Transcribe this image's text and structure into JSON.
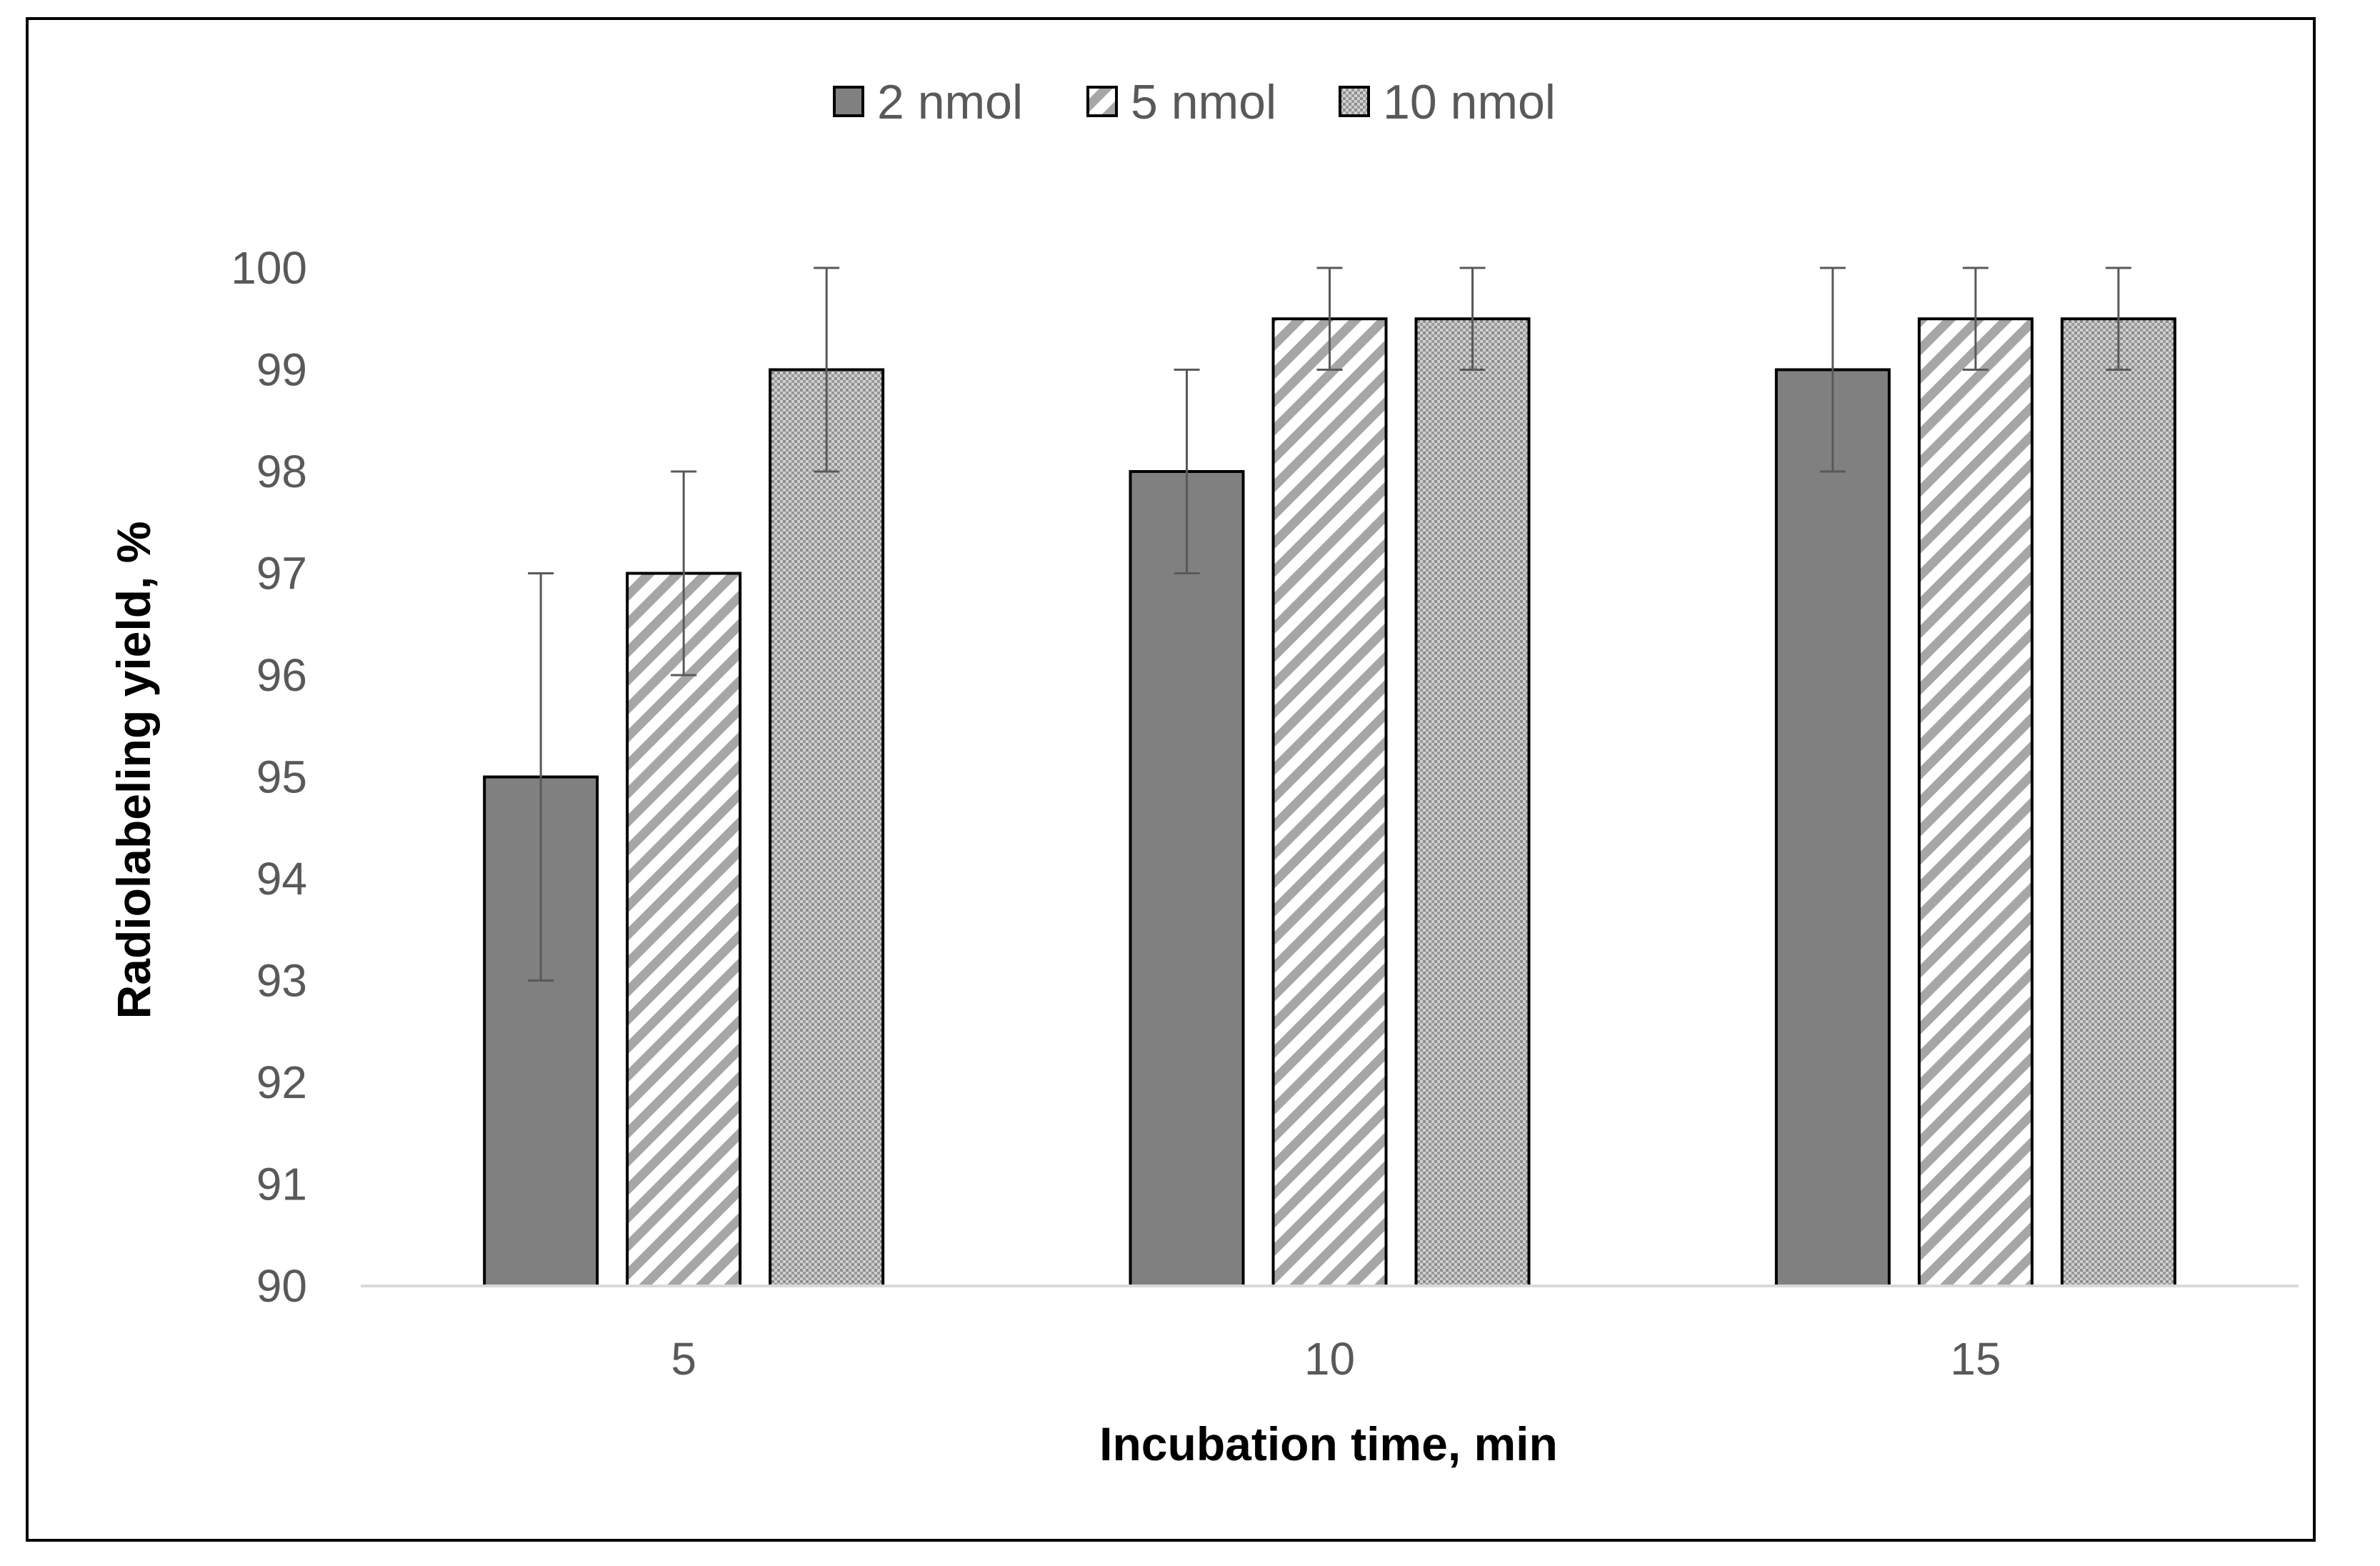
{
  "chart_data": {
    "type": "bar",
    "title": "",
    "xlabel": "Incubation time, min",
    "ylabel": "Radiolabeling yield, %",
    "categories": [
      "5",
      "10",
      "15"
    ],
    "ylim": [
      90,
      100
    ],
    "yticks": [
      90,
      91,
      92,
      93,
      94,
      95,
      96,
      97,
      98,
      99,
      100
    ],
    "grid": false,
    "legend_position": "top-center",
    "series": [
      {
        "name": "2 nmol",
        "pattern": "solid",
        "fill": "#808080",
        "values": [
          95,
          98,
          99
        ],
        "errors": [
          2,
          1,
          1
        ]
      },
      {
        "name": "5 nmol",
        "pattern": "diagonal-stripes",
        "fill": "#a6a6a6",
        "values": [
          97,
          99.5,
          99.5
        ],
        "errors": [
          1,
          0.5,
          0.5
        ]
      },
      {
        "name": "10 nmol",
        "pattern": "dotted",
        "fill": "#b3b3b3",
        "values": [
          99,
          99.5,
          99.5
        ],
        "errors": [
          1,
          0.5,
          0.5
        ]
      }
    ]
  },
  "colors": {
    "axis": "#d9d9d9",
    "text": "#595959",
    "bar_edge": "#000000",
    "error_bar": "#595959"
  }
}
